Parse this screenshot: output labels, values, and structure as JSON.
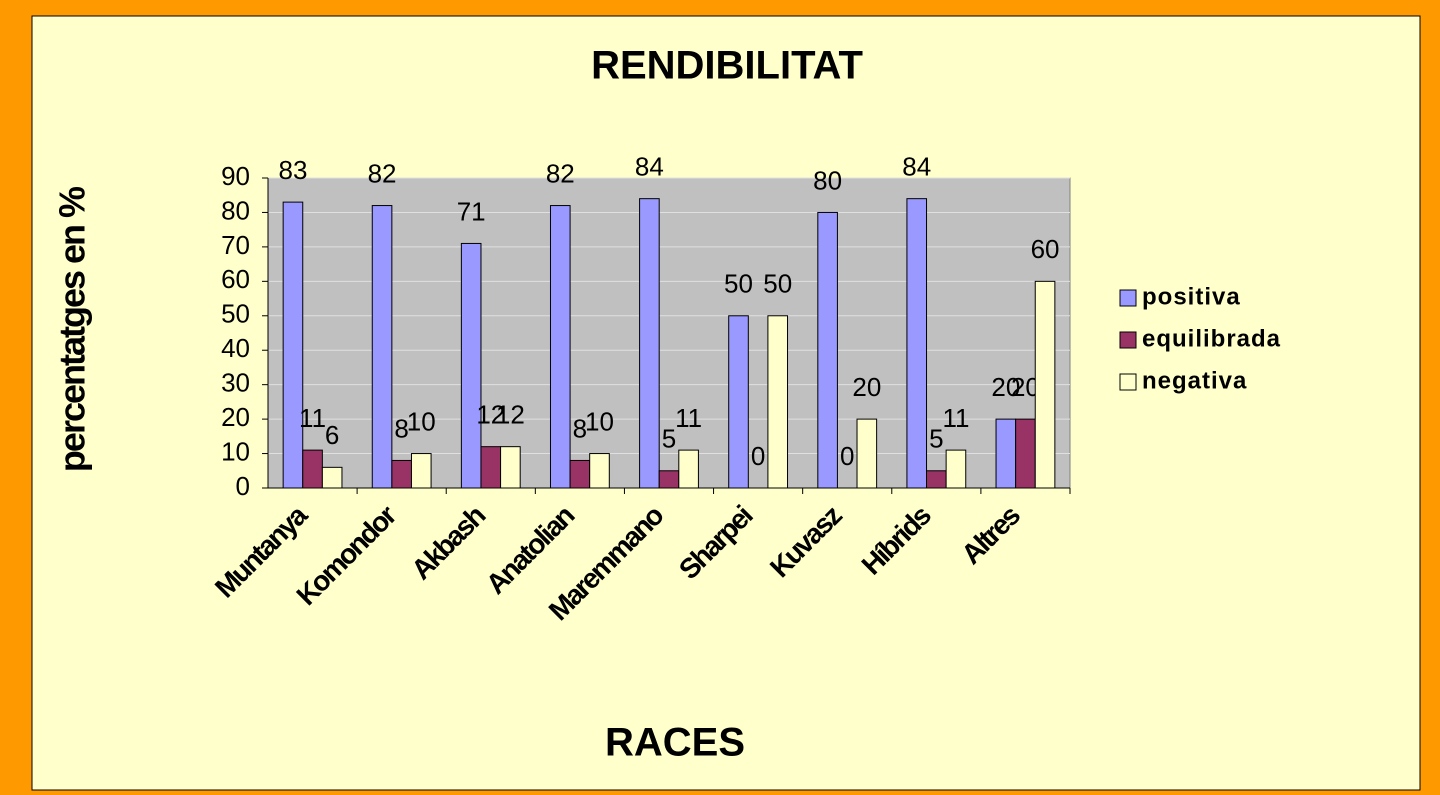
{
  "chart_data": {
    "type": "bar",
    "title": "RENDIBILITAT",
    "x_label": "RACES",
    "y_label": "percentatges en %",
    "categories": [
      "Muntanya",
      "Komondor",
      "Akbash",
      "Anatolian",
      "Maremmano",
      "Sharpei",
      "Kuvasz",
      "Híbrids",
      "Altres"
    ],
    "series": [
      {
        "name": "positiva",
        "color": "#9999ff",
        "values": [
          83,
          82,
          71,
          82,
          84,
          50,
          80,
          84,
          20
        ]
      },
      {
        "name": "equilibrada",
        "color": "#993366",
        "values": [
          11,
          8,
          12,
          8,
          5,
          0,
          0,
          5,
          20
        ]
      },
      {
        "name": "negativa",
        "color": "#ffffcc",
        "values": [
          6,
          10,
          12,
          10,
          11,
          50,
          20,
          11,
          60
        ]
      }
    ],
    "ylim": [
      0,
      90
    ],
    "yticks": [
      0,
      10,
      20,
      30,
      40,
      50,
      60,
      70,
      80,
      90
    ],
    "grid": true,
    "legend": "right"
  }
}
